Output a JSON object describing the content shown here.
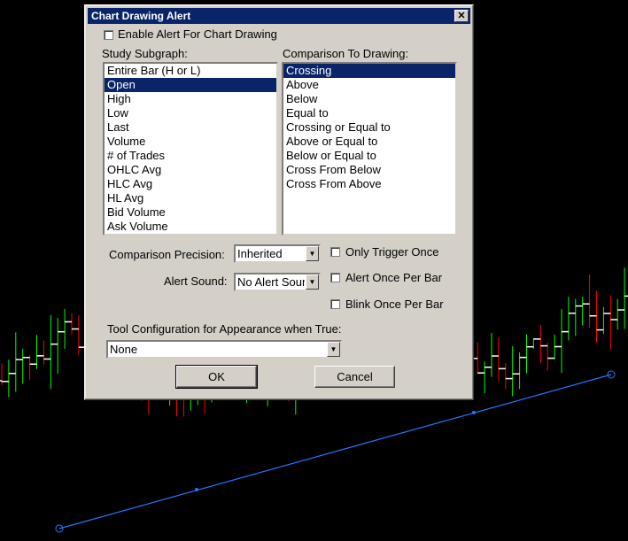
{
  "dialog": {
    "title": "Chart Drawing Alert",
    "close_glyph": "✕",
    "enable_alert_label": "Enable Alert For Chart Drawing",
    "study_subgraph_label": "Study Subgraph:",
    "comparison_label": "Comparison To Drawing:",
    "subgraph_items": [
      "Entire Bar (H or L)",
      "Open",
      "High",
      "Low",
      "Last",
      "Volume",
      "# of Trades",
      "OHLC Avg",
      "HLC Avg",
      "HL Avg",
      "Bid Volume",
      "Ask Volume"
    ],
    "subgraph_selected": "Open",
    "comparison_items": [
      "Crossing",
      "Above",
      "Below",
      "Equal to",
      "Crossing or Equal to",
      "Above or Equal to",
      "Below or Equal to",
      "Cross From Below",
      "Cross From Above"
    ],
    "comparison_selected": "Crossing",
    "precision_label": "Comparison Precision:",
    "precision_value": "Inherited",
    "alert_sound_label": "Alert Sound:",
    "alert_sound_value": "No Alert Sour",
    "only_trigger_once_label": "Only Trigger Once",
    "alert_once_per_bar_label": "Alert Once Per Bar",
    "blink_once_per_bar_label": "Blink Once Per Bar",
    "tool_config_label": "Tool Configuration for Appearance when True:",
    "tool_config_value": "None",
    "ok_label": "OK",
    "cancel_label": "Cancel"
  },
  "chart": {
    "background": "#000000",
    "up_color": "#00ff00",
    "down_color": "#ff0000",
    "tick_color": "#ffffff",
    "trendline_color": "#1e78ff"
  }
}
